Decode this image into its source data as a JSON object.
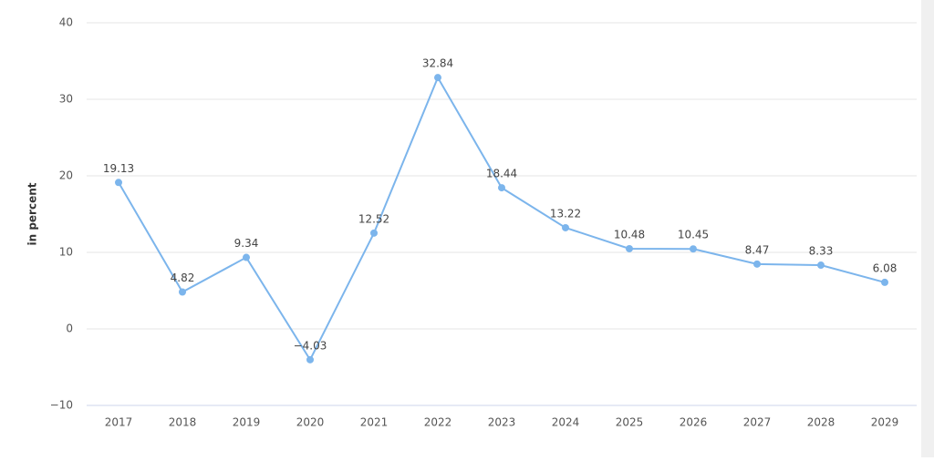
{
  "chart_data": {
    "type": "line",
    "y_label": "in percent",
    "categories": [
      "2017",
      "2018",
      "2019",
      "2020",
      "2021",
      "2022",
      "2023",
      "2024",
      "2025",
      "2026",
      "2027",
      "2028",
      "2029"
    ],
    "values": [
      19.13,
      4.82,
      9.34,
      -4.03,
      12.52,
      32.84,
      18.44,
      13.22,
      10.48,
      10.45,
      8.47,
      8.33,
      6.08
    ],
    "value_labels": [
      "19.13",
      "4.82",
      "9.34",
      "−4.03",
      "12.52",
      "32.84",
      "18.44",
      "13.22",
      "10.48",
      "10.45",
      "8.47",
      "8.33",
      "6.08"
    ],
    "color": "#7cb5ec",
    "ylim": [
      -10,
      40
    ],
    "yticks": [
      {
        "value": -10,
        "label": "−10"
      },
      0,
      10,
      20,
      30,
      40
    ],
    "grid": true
  }
}
